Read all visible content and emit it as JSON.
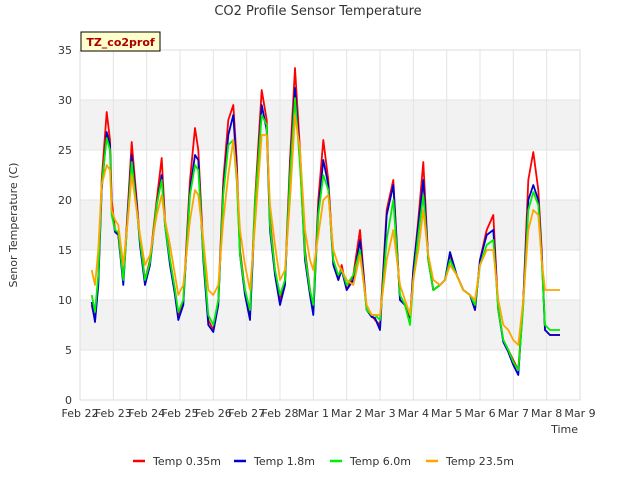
{
  "chart_data": {
    "type": "line",
    "title": "CO2 Profile Sensor Temperature",
    "xlabel": "Time",
    "ylabel": "Senor Temperature (C)",
    "site_label": "TZ_co2prof",
    "xlim": [
      0,
      15
    ],
    "ylim": [
      0,
      35
    ],
    "x_ticks": [
      {
        "v": 0,
        "label": "Feb 22"
      },
      {
        "v": 1,
        "label": "Feb 23"
      },
      {
        "v": 2,
        "label": "Feb 24"
      },
      {
        "v": 3,
        "label": "Feb 25"
      },
      {
        "v": 4,
        "label": "Feb 26"
      },
      {
        "v": 5,
        "label": "Feb 27"
      },
      {
        "v": 6,
        "label": "Feb 28"
      },
      {
        "v": 7,
        "label": "Mar 1"
      },
      {
        "v": 8,
        "label": "Mar 2"
      },
      {
        "v": 9,
        "label": "Mar 3"
      },
      {
        "v": 10,
        "label": "Mar 4"
      },
      {
        "v": 11,
        "label": "Mar 5"
      },
      {
        "v": 12,
        "label": "Mar 6"
      },
      {
        "v": 13,
        "label": "Mar 7"
      },
      {
        "v": 14,
        "label": "Mar 8"
      },
      {
        "v": 15,
        "label": "Mar 9"
      }
    ],
    "y_ticks": [
      {
        "v": 0,
        "label": "0"
      },
      {
        "v": 5,
        "label": "5"
      },
      {
        "v": 10,
        "label": "10"
      },
      {
        "v": 15,
        "label": "15"
      },
      {
        "v": 20,
        "label": "20"
      },
      {
        "v": 25,
        "label": "25"
      },
      {
        "v": 30,
        "label": "30"
      },
      {
        "v": 35,
        "label": "35"
      }
    ],
    "bands": [
      [
        5,
        10
      ],
      [
        15,
        20
      ],
      [
        25,
        30
      ]
    ],
    "series": [
      {
        "name": "Temp 0.35m",
        "color": "#ff0000",
        "x": [
          0.35,
          0.45,
          0.55,
          0.65,
          0.8,
          0.9,
          0.95,
          1.05,
          1.15,
          1.3,
          1.45,
          1.55,
          1.7,
          1.8,
          1.95,
          2.1,
          2.3,
          2.45,
          2.55,
          2.7,
          2.85,
          2.95,
          3.1,
          3.3,
          3.45,
          3.55,
          3.7,
          3.85,
          4.0,
          4.15,
          4.3,
          4.45,
          4.6,
          4.7,
          4.8,
          4.95,
          5.1,
          5.25,
          5.45,
          5.6,
          5.7,
          5.85,
          6.0,
          6.15,
          6.3,
          6.45,
          6.6,
          6.75,
          6.9,
          7.0,
          7.15,
          7.3,
          7.45,
          7.6,
          7.75,
          7.85,
          8.0,
          8.2,
          8.4,
          8.6,
          8.75,
          8.85,
          9.0,
          9.2,
          9.4,
          9.6,
          9.75,
          9.9,
          10.0,
          10.15,
          10.3,
          10.45,
          10.6,
          10.8,
          10.95,
          11.1,
          11.3,
          11.5,
          11.7,
          11.85,
          12.0,
          12.2,
          12.4,
          12.55,
          12.7,
          12.85,
          13.0,
          13.15,
          13.3,
          13.45,
          13.6,
          13.75,
          13.85,
          13.95,
          14.1,
          14.25,
          14.4
        ],
        "y": [
          9.5,
          8.0,
          12.0,
          22.0,
          28.8,
          26.0,
          20.0,
          17.0,
          16.5,
          12.0,
          20.0,
          25.8,
          20.0,
          16.0,
          12.0,
          14.0,
          20.0,
          24.2,
          18.0,
          14.0,
          11.0,
          8.5,
          10.0,
          22.0,
          27.2,
          25.0,
          15.0,
          8.0,
          7.0,
          10.0,
          22.0,
          28.0,
          29.5,
          24.0,
          15.0,
          11.0,
          8.5,
          20.0,
          31.0,
          28.0,
          18.0,
          13.0,
          10.0,
          12.0,
          24.0,
          33.2,
          25.0,
          15.0,
          11.0,
          9.0,
          20.0,
          26.0,
          22.0,
          14.0,
          12.0,
          13.5,
          11.0,
          12.5,
          17.0,
          9.0,
          8.5,
          8.0,
          7.5,
          19.0,
          22.0,
          10.0,
          9.5,
          8.0,
          13.0,
          18.0,
          23.8,
          14.0,
          11.0,
          11.5,
          12.0,
          14.5,
          12.5,
          11.0,
          10.5,
          9.0,
          14.0,
          17.0,
          18.5,
          9.0,
          6.0,
          5.0,
          4.0,
          3.0,
          10.0,
          22.0,
          24.8,
          21.0,
          15.0,
          7.0,
          6.5,
          6.5,
          6.5
        ]
      },
      {
        "name": "Temp 1.8m",
        "color": "#0000cc",
        "x": [
          0.35,
          0.45,
          0.55,
          0.65,
          0.8,
          0.9,
          0.95,
          1.05,
          1.15,
          1.3,
          1.45,
          1.55,
          1.7,
          1.8,
          1.95,
          2.1,
          2.3,
          2.45,
          2.55,
          2.7,
          2.85,
          2.95,
          3.1,
          3.3,
          3.45,
          3.55,
          3.7,
          3.85,
          4.0,
          4.15,
          4.3,
          4.45,
          4.6,
          4.7,
          4.8,
          4.95,
          5.1,
          5.25,
          5.45,
          5.6,
          5.7,
          5.85,
          6.0,
          6.15,
          6.3,
          6.45,
          6.6,
          6.75,
          6.9,
          7.0,
          7.15,
          7.3,
          7.45,
          7.6,
          7.75,
          7.85,
          8.0,
          8.2,
          8.4,
          8.6,
          8.75,
          8.85,
          9.0,
          9.2,
          9.4,
          9.6,
          9.75,
          9.9,
          10.0,
          10.15,
          10.3,
          10.45,
          10.6,
          10.8,
          10.95,
          11.1,
          11.3,
          11.5,
          11.7,
          11.85,
          12.0,
          12.2,
          12.4,
          12.55,
          12.7,
          12.85,
          13.0,
          13.15,
          13.3,
          13.45,
          13.6,
          13.75,
          13.85,
          13.95,
          14.1,
          14.25,
          14.4
        ],
        "y": [
          9.8,
          7.8,
          11.5,
          21.0,
          26.8,
          25.5,
          19.0,
          16.8,
          16.5,
          11.5,
          19.5,
          24.5,
          19.5,
          15.5,
          11.5,
          13.5,
          19.5,
          22.5,
          17.5,
          13.5,
          10.5,
          8.0,
          9.5,
          21.0,
          24.5,
          24.0,
          14.0,
          7.5,
          6.8,
          9.5,
          21.0,
          26.5,
          28.5,
          23.0,
          14.5,
          10.5,
          8.0,
          19.0,
          29.5,
          27.0,
          17.0,
          12.5,
          9.5,
          11.5,
          23.0,
          31.2,
          24.0,
          14.0,
          10.5,
          8.5,
          19.0,
          24.0,
          21.5,
          13.5,
          12.0,
          13.0,
          11.0,
          12.0,
          16.0,
          9.0,
          8.3,
          8.2,
          7.0,
          18.5,
          21.5,
          10.0,
          9.5,
          8.0,
          13.0,
          17.5,
          22.0,
          14.0,
          11.0,
          11.5,
          12.0,
          14.8,
          12.5,
          11.0,
          10.5,
          9.0,
          14.0,
          16.5,
          17.0,
          9.0,
          5.8,
          4.8,
          3.5,
          2.5,
          10.0,
          20.0,
          21.5,
          20.0,
          14.5,
          7.0,
          6.5,
          6.5,
          6.5
        ]
      },
      {
        "name": "Temp 6.0m",
        "color": "#00ee00",
        "x": [
          0.35,
          0.45,
          0.55,
          0.65,
          0.8,
          0.9,
          0.95,
          1.05,
          1.15,
          1.3,
          1.45,
          1.55,
          1.7,
          1.8,
          1.95,
          2.1,
          2.3,
          2.45,
          2.55,
          2.7,
          2.85,
          2.95,
          3.1,
          3.3,
          3.45,
          3.55,
          3.7,
          3.85,
          4.0,
          4.15,
          4.3,
          4.45,
          4.6,
          4.7,
          4.8,
          4.95,
          5.1,
          5.25,
          5.45,
          5.6,
          5.7,
          5.85,
          6.0,
          6.15,
          6.3,
          6.45,
          6.6,
          6.75,
          6.9,
          7.0,
          7.15,
          7.3,
          7.45,
          7.6,
          7.75,
          7.85,
          8.0,
          8.2,
          8.4,
          8.6,
          8.75,
          8.85,
          9.0,
          9.2,
          9.4,
          9.6,
          9.75,
          9.9,
          10.0,
          10.15,
          10.3,
          10.45,
          10.6,
          10.8,
          10.95,
          11.1,
          11.3,
          11.5,
          11.7,
          11.85,
          12.0,
          12.2,
          12.4,
          12.55,
          12.7,
          12.85,
          13.0,
          13.15,
          13.3,
          13.45,
          13.6,
          13.75,
          13.85,
          13.95,
          14.1,
          14.25,
          14.4
        ],
        "y": [
          10.5,
          8.8,
          12.5,
          21.5,
          26.2,
          25.0,
          18.5,
          17.0,
          16.8,
          12.0,
          19.0,
          23.8,
          19.0,
          16.0,
          12.0,
          13.8,
          19.5,
          22.0,
          17.5,
          14.0,
          11.0,
          8.8,
          10.0,
          20.5,
          23.5,
          23.0,
          14.5,
          8.5,
          7.5,
          10.0,
          20.5,
          25.5,
          26.0,
          22.0,
          14.5,
          11.0,
          9.0,
          19.5,
          28.5,
          27.5,
          17.5,
          13.0,
          10.5,
          12.0,
          22.5,
          30.2,
          23.5,
          14.5,
          11.0,
          9.5,
          18.5,
          22.5,
          21.0,
          14.0,
          12.5,
          13.0,
          11.5,
          12.5,
          15.0,
          9.0,
          8.5,
          8.5,
          8.0,
          16.0,
          20.0,
          10.5,
          9.5,
          7.5,
          12.0,
          16.5,
          20.5,
          14.0,
          11.0,
          11.5,
          12.0,
          14.0,
          12.5,
          11.0,
          10.5,
          9.5,
          13.5,
          15.5,
          16.0,
          9.0,
          6.0,
          5.0,
          3.8,
          3.0,
          9.5,
          19.0,
          20.8,
          19.5,
          14.0,
          7.5,
          7.0,
          7.0,
          7.0
        ]
      },
      {
        "name": "Temp 23.5m",
        "color": "#ffa500",
        "x": [
          0.35,
          0.45,
          0.55,
          0.65,
          0.8,
          0.9,
          0.95,
          1.05,
          1.15,
          1.3,
          1.45,
          1.55,
          1.7,
          1.8,
          1.95,
          2.1,
          2.3,
          2.45,
          2.55,
          2.7,
          2.85,
          2.95,
          3.1,
          3.3,
          3.45,
          3.55,
          3.7,
          3.85,
          4.0,
          4.15,
          4.3,
          4.45,
          4.6,
          4.7,
          4.8,
          4.95,
          5.1,
          5.25,
          5.45,
          5.6,
          5.7,
          5.85,
          6.0,
          6.15,
          6.3,
          6.45,
          6.6,
          6.75,
          6.9,
          7.0,
          7.15,
          7.3,
          7.45,
          7.6,
          7.75,
          7.85,
          8.0,
          8.2,
          8.4,
          8.6,
          8.75,
          8.85,
          9.0,
          9.2,
          9.4,
          9.6,
          9.75,
          9.9,
          10.0,
          10.15,
          10.3,
          10.45,
          10.6,
          10.8,
          10.95,
          11.1,
          11.3,
          11.5,
          11.7,
          11.85,
          12.0,
          12.2,
          12.4,
          12.55,
          12.7,
          12.85,
          13.0,
          13.15,
          13.3,
          13.45,
          13.6,
          13.75,
          13.85,
          13.95,
          14.1,
          14.25,
          14.4
        ],
        "y": [
          13.0,
          11.5,
          15.0,
          21.5,
          23.5,
          23.0,
          19.0,
          18.0,
          17.5,
          13.5,
          18.5,
          22.5,
          19.0,
          16.5,
          13.5,
          14.5,
          18.5,
          20.5,
          18.0,
          15.5,
          12.5,
          10.5,
          11.5,
          18.0,
          21.0,
          20.5,
          16.0,
          11.0,
          10.5,
          11.5,
          18.0,
          22.5,
          26.0,
          22.5,
          17.0,
          13.5,
          11.0,
          17.5,
          26.5,
          26.5,
          19.5,
          15.5,
          12.0,
          13.0,
          20.0,
          28.5,
          25.0,
          17.0,
          14.0,
          13.0,
          16.5,
          20.0,
          20.5,
          15.0,
          13.5,
          13.0,
          12.0,
          11.5,
          14.5,
          9.5,
          8.5,
          8.5,
          8.5,
          14.0,
          17.0,
          11.5,
          10.0,
          8.5,
          12.0,
          15.0,
          19.0,
          14.5,
          12.0,
          11.5,
          12.0,
          13.5,
          12.5,
          11.0,
          10.5,
          10.0,
          13.5,
          15.0,
          15.0,
          10.0,
          7.5,
          7.0,
          6.0,
          5.5,
          10.0,
          17.0,
          19.0,
          18.5,
          14.0,
          11.0,
          11.0,
          11.0,
          11.0
        ]
      }
    ]
  }
}
